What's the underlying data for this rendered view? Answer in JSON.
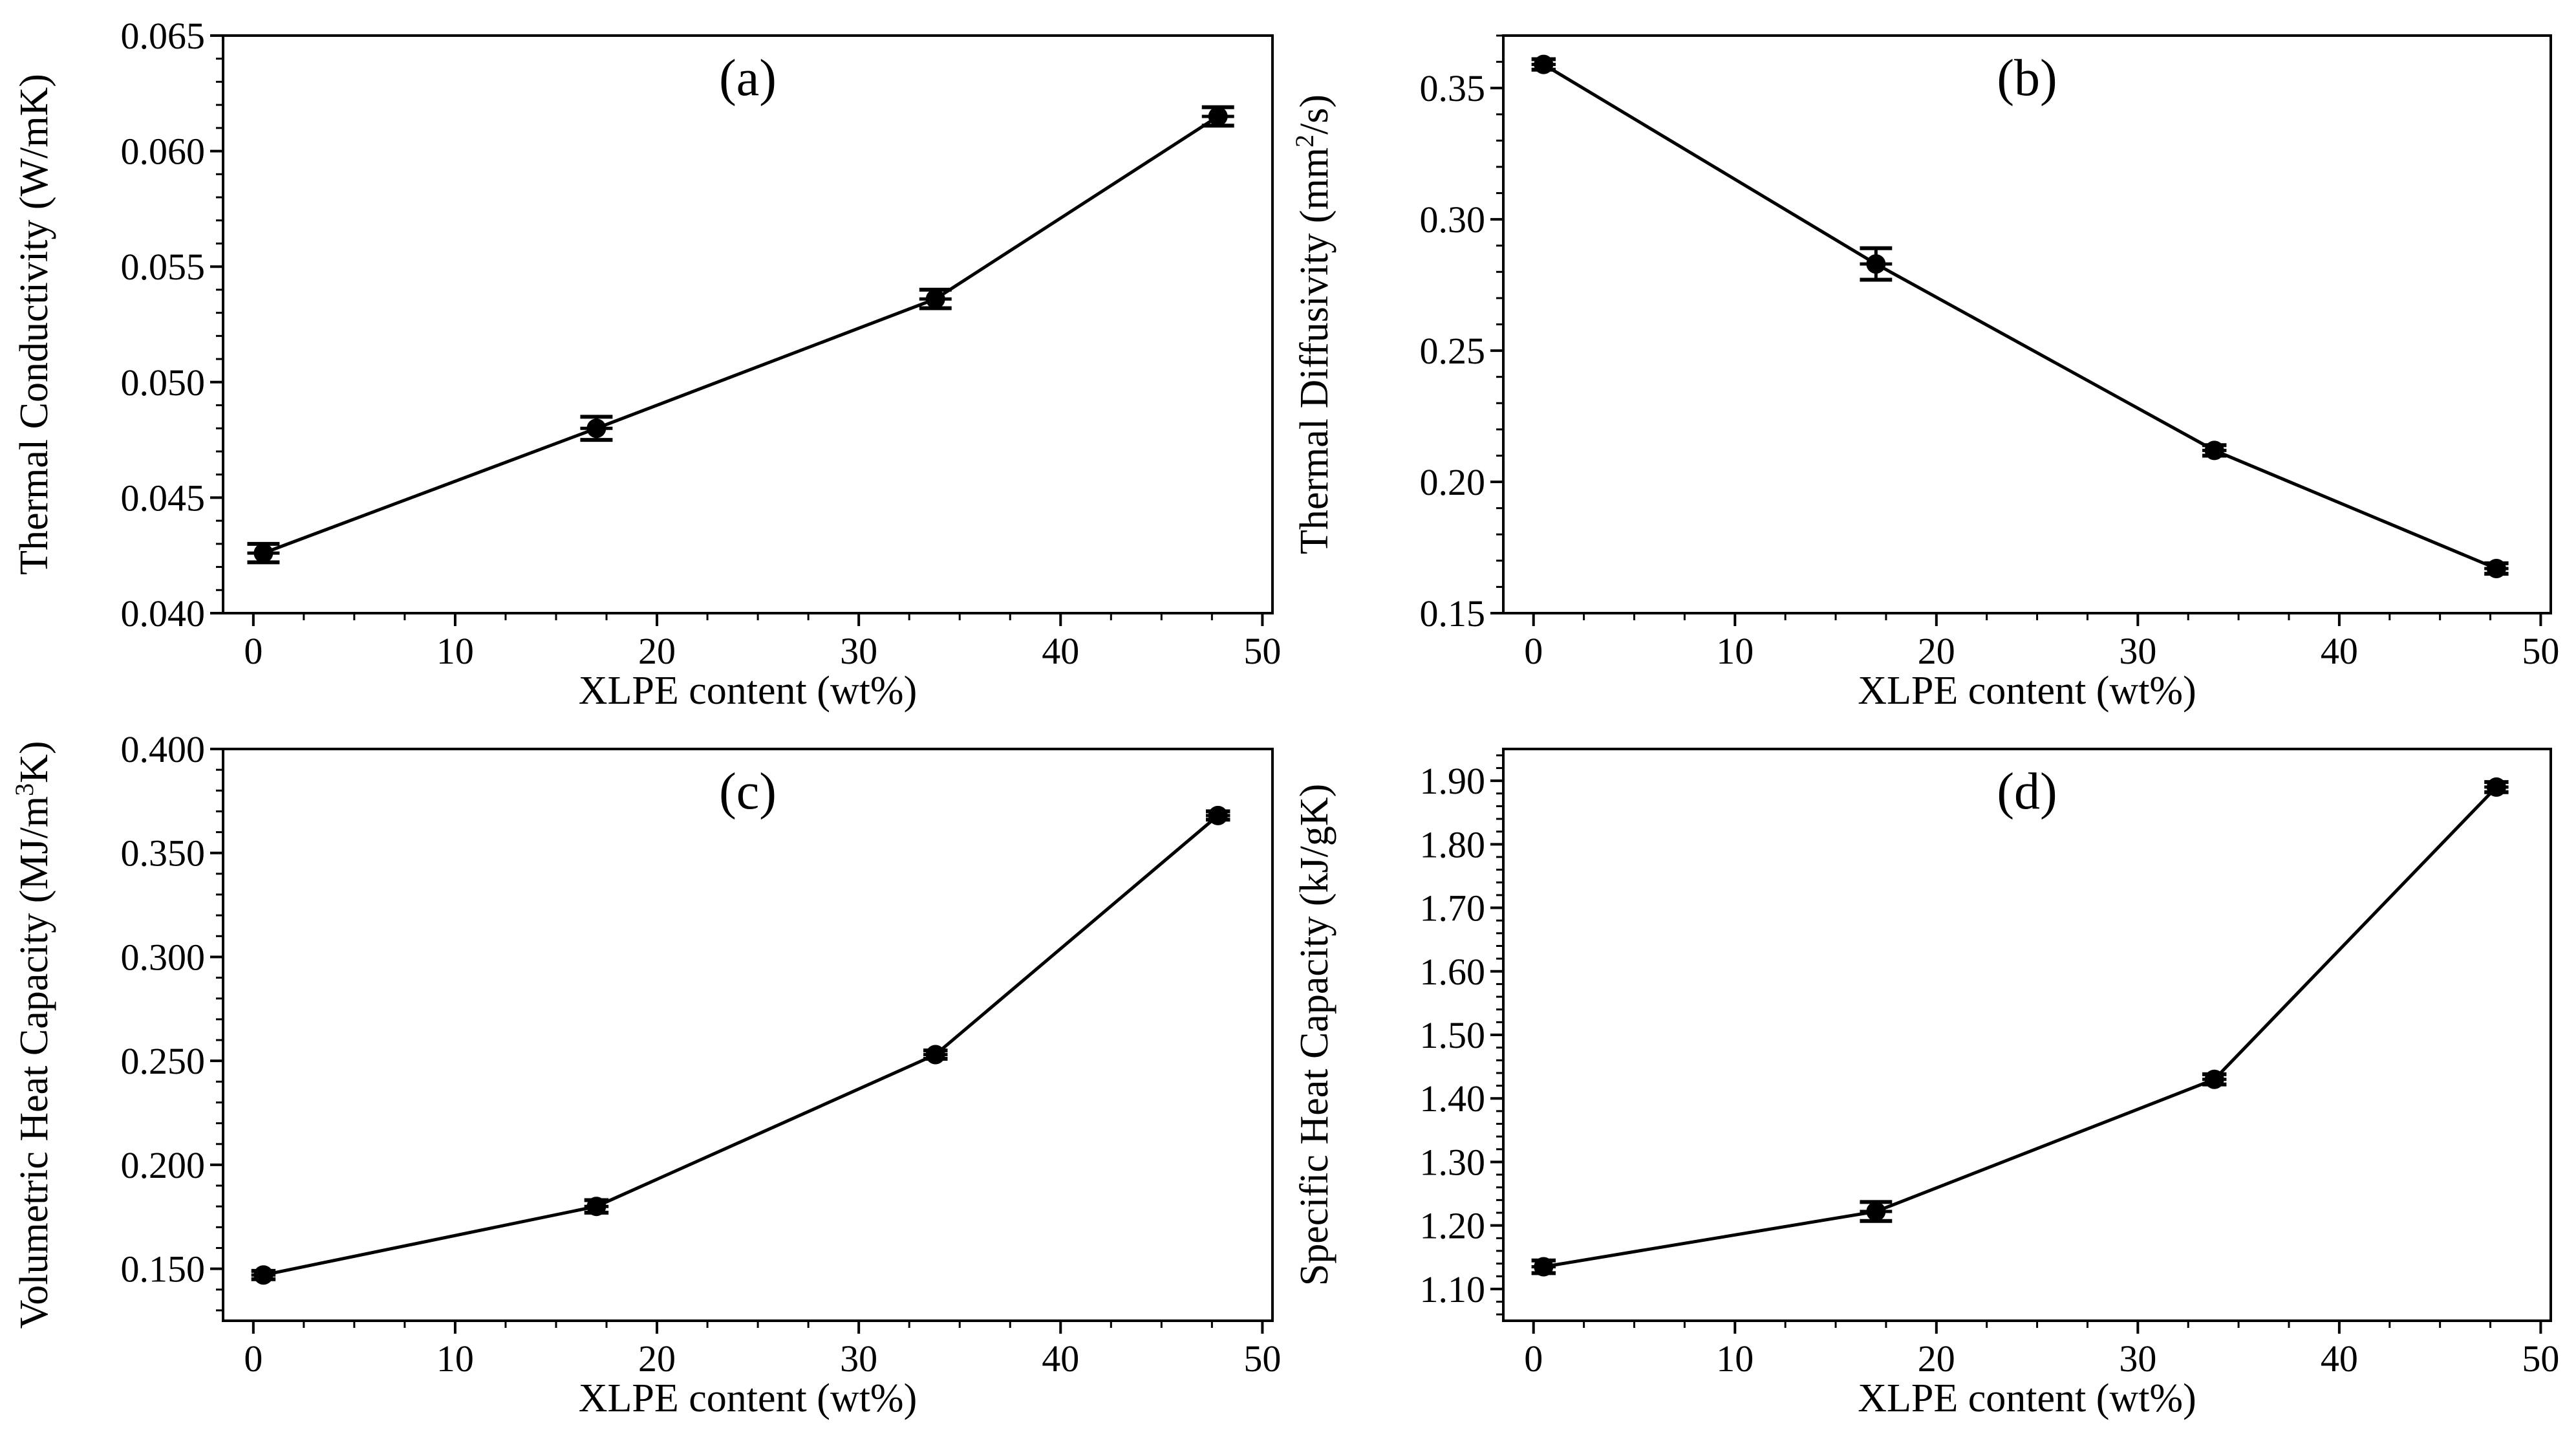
{
  "chart_data": [
    {
      "id": "a",
      "type": "line",
      "panel_label": "(a)",
      "xlabel": "XLPE content (wt%)",
      "ylabel": "Thermal  Conductivity (W/mK)",
      "xlim": [
        -1.5,
        50.5
      ],
      "ylim": [
        0.04,
        0.065
      ],
      "xticks": [
        0,
        10,
        20,
        30,
        40,
        50
      ],
      "yticks": [
        0.04,
        0.045,
        0.05,
        0.055,
        0.06,
        0.065
      ],
      "xtick_labels": [
        "0",
        "10",
        "20",
        "30",
        "40",
        "50"
      ],
      "ytick_labels": [
        "0.040",
        "0.045",
        "0.050",
        "0.055",
        "0.060",
        "0.065"
      ],
      "x_minor_step": 2.5,
      "y_minor_step": 0.001,
      "series": [
        {
          "name": "XLPE",
          "x": [
            0.5,
            17,
            33.8,
            47.8
          ],
          "y": [
            0.0426,
            0.048,
            0.0536,
            0.0615
          ],
          "yerr": [
            0.0004,
            0.0005,
            0.0004,
            0.0004
          ],
          "xerr": [
            0.8,
            0.8,
            0.8,
            0.8
          ]
        }
      ]
    },
    {
      "id": "b",
      "type": "line",
      "panel_label": "(b)",
      "xlabel": "XLPE content (wt%)",
      "ylabel": "Thermal Diffusivity (mm",
      "ylabel_sup": "2",
      "ylabel_end": "/s)",
      "xlim": [
        -1.5,
        50.5
      ],
      "ylim": [
        0.15,
        0.37
      ],
      "xticks": [
        0,
        10,
        20,
        30,
        40,
        50
      ],
      "yticks": [
        0.15,
        0.2,
        0.25,
        0.3,
        0.35
      ],
      "xtick_labels": [
        "0",
        "10",
        "20",
        "30",
        "40",
        "50"
      ],
      "ytick_labels": [
        "0.15",
        "0.20",
        "0.25",
        "0.30",
        "0.35"
      ],
      "x_minor_step": 2.5,
      "y_minor_step": 0.01,
      "series": [
        {
          "name": "XLPE",
          "x": [
            0.5,
            17,
            33.8,
            47.8
          ],
          "y": [
            0.359,
            0.283,
            0.212,
            0.167
          ],
          "yerr": [
            0.002,
            0.006,
            0.002,
            0.002
          ],
          "xerr": [
            0.6,
            0.8,
            0.6,
            0.6
          ]
        }
      ]
    },
    {
      "id": "c",
      "type": "line",
      "panel_label": "(c)",
      "xlabel": "XLPE content (wt%)",
      "ylabel": "Volumetric Heat Capacity (MJ/m",
      "ylabel_sup": "3",
      "ylabel_end": "K)",
      "xlim": [
        -1.5,
        50.5
      ],
      "ylim": [
        0.125,
        0.4
      ],
      "xticks": [
        0,
        10,
        20,
        30,
        40,
        50
      ],
      "yticks": [
        0.15,
        0.2,
        0.25,
        0.3,
        0.35,
        0.4
      ],
      "xtick_labels": [
        "0",
        "10",
        "20",
        "30",
        "40",
        "50"
      ],
      "ytick_labels": [
        "0.150",
        "0.200",
        "0.250",
        "0.300",
        "0.350",
        "0.400"
      ],
      "x_minor_step": 2.5,
      "y_minor_step": 0.01,
      "series": [
        {
          "name": "XLPE",
          "x": [
            0.5,
            17,
            33.8,
            47.8
          ],
          "y": [
            0.147,
            0.18,
            0.253,
            0.368
          ],
          "yerr": [
            0.002,
            0.003,
            0.002,
            0.002
          ],
          "xerr": [
            0.6,
            0.6,
            0.6,
            0.6
          ]
        }
      ]
    },
    {
      "id": "d",
      "type": "line",
      "panel_label": "(d)",
      "xlabel": "XLPE content (wt%)",
      "ylabel": "Specific Heat Capacity (kJ/gK)",
      "xlim": [
        -1.5,
        50.5
      ],
      "ylim": [
        1.05,
        1.95
      ],
      "xticks": [
        0,
        10,
        20,
        30,
        40,
        50
      ],
      "yticks": [
        1.1,
        1.2,
        1.3,
        1.4,
        1.5,
        1.6,
        1.7,
        1.8,
        1.9
      ],
      "xtick_labels": [
        "0",
        "10",
        "20",
        "30",
        "40",
        "50"
      ],
      "ytick_labels": [
        "1.10",
        "1.20",
        "1.30",
        "1.40",
        "1.50",
        "1.60",
        "1.70",
        "1.80",
        "1.90"
      ],
      "x_minor_step": 2.5,
      "y_minor_step": 0.02,
      "series": [
        {
          "name": "XLPE",
          "x": [
            0.5,
            17,
            33.8,
            47.8
          ],
          "y": [
            1.135,
            1.222,
            1.43,
            1.89
          ],
          "yerr": [
            0.01,
            0.015,
            0.008,
            0.008
          ],
          "xerr": [
            0.6,
            0.8,
            0.6,
            0.6
          ]
        }
      ]
    }
  ]
}
